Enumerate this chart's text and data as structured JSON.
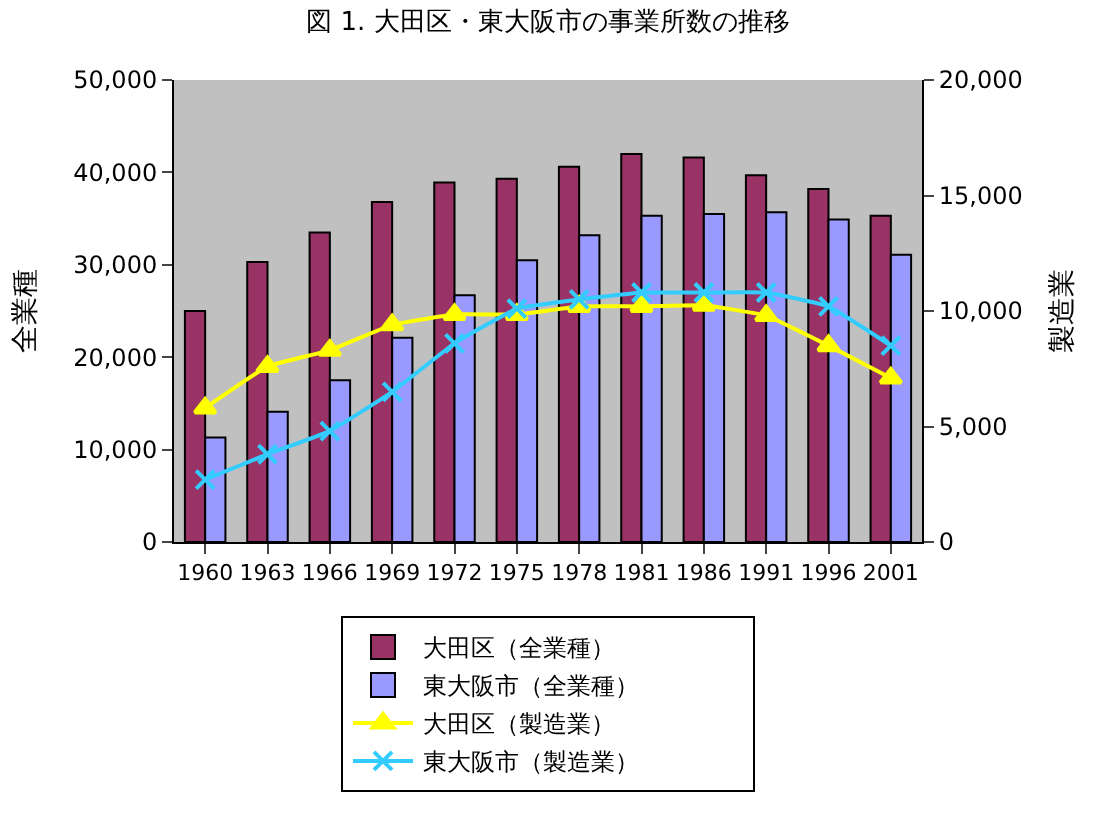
{
  "chart_data": {
    "type": "bar",
    "title": "図 1. 大田区・東大阪市の事業所数の推移",
    "ylabel": "全業種",
    "y2label": "製造業",
    "categories": [
      "1960",
      "1963",
      "1966",
      "1969",
      "1972",
      "1975",
      "1978",
      "1981",
      "1986",
      "1991",
      "1996",
      "2001"
    ],
    "series": [
      {
        "name": "大田区（全業種）",
        "color": "#993366",
        "values": [
          25000,
          30300,
          33500,
          36800,
          38900,
          39300,
          40600,
          42000,
          41600,
          39700,
          38200,
          35300
        ]
      },
      {
        "name": "東大阪市（全業種）",
        "color": "#9999ff",
        "values": [
          11300,
          14100,
          17500,
          22100,
          26700,
          30500,
          33200,
          35300,
          35500,
          35700,
          34900,
          31100
        ]
      },
      {
        "name": "大田区（製造業）",
        "type": "line",
        "axis": "y2",
        "marker": "triangle",
        "color": "#ffff00",
        "values": [
          5800,
          7600,
          8300,
          9400,
          9850,
          9850,
          10200,
          10200,
          10250,
          9800,
          8500,
          7100
        ]
      },
      {
        "name": "東大阪市（製造業）",
        "type": "line",
        "axis": "y2",
        "marker": "cross",
        "color": "#33ccff",
        "values": [
          2700,
          3800,
          4800,
          6500,
          8600,
          10100,
          10500,
          10800,
          10800,
          10800,
          10200,
          8500
        ]
      }
    ],
    "ylim": [
      0,
      50000
    ],
    "yticks": [
      {
        "value": 0,
        "label": "0"
      },
      {
        "value": 10000,
        "label": "10,000"
      },
      {
        "value": 20000,
        "label": "20,000"
      },
      {
        "value": 30000,
        "label": "30,000"
      },
      {
        "value": 40000,
        "label": "40,000"
      },
      {
        "value": 50000,
        "label": "50,000"
      }
    ],
    "y2lim": [
      0,
      20000
    ],
    "y2ticks": [
      {
        "value": 0,
        "label": "0"
      },
      {
        "value": 5000,
        "label": "5,000"
      },
      {
        "value": 10000,
        "label": "10,000"
      },
      {
        "value": 15000,
        "label": "15,000"
      },
      {
        "value": 20000,
        "label": "20,000"
      }
    ],
    "grid": false,
    "legend": "bottom"
  }
}
